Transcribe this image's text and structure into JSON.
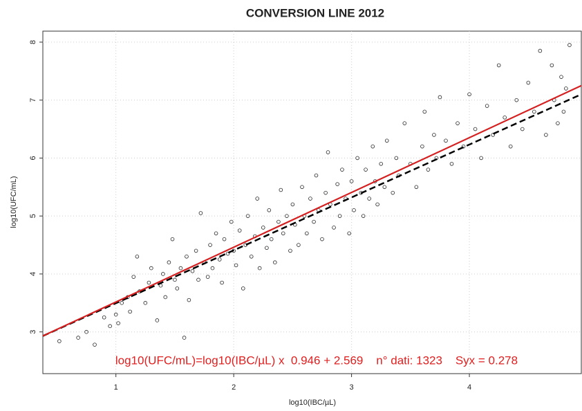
{
  "chart_data": {
    "type": "scatter",
    "title": "CONVERSION LINE 2012",
    "x_label": "log10(IBC/µL)",
    "y_label": "log10(UFC/mL)",
    "annotation": "log10(UFC/mL)=log10(IBC/µL) x  0.946 + 2.569    n° dati: 1323    Syx = 0.278",
    "annotation_color": "#e02020",
    "xlim": [
      0.38,
      4.95
    ],
    "ylim": [
      2.28,
      8.19
    ],
    "xticks": [
      1,
      2,
      3,
      4
    ],
    "yticks": [
      3,
      4,
      5,
      6,
      7,
      8
    ],
    "grid": true,
    "point_color": "#222222",
    "x": [
      0.52,
      0.68,
      0.75,
      0.82,
      0.9,
      0.95,
      1.0,
      1.02,
      1.05,
      1.1,
      1.12,
      1.15,
      1.18,
      1.2,
      1.25,
      1.28,
      1.3,
      1.35,
      1.38,
      1.4,
      1.42,
      1.45,
      1.48,
      1.5,
      1.52,
      1.55,
      1.58,
      1.6,
      1.62,
      1.65,
      1.68,
      1.7,
      1.72,
      1.75,
      1.78,
      1.8,
      1.82,
      1.85,
      1.88,
      1.9,
      1.92,
      1.95,
      1.98,
      2.0,
      2.02,
      2.05,
      2.08,
      2.1,
      2.12,
      2.15,
      2.18,
      2.2,
      2.22,
      2.25,
      2.28,
      2.3,
      2.32,
      2.35,
      2.38,
      2.4,
      2.42,
      2.45,
      2.48,
      2.5,
      2.52,
      2.55,
      2.58,
      2.6,
      2.62,
      2.65,
      2.68,
      2.7,
      2.72,
      2.75,
      2.78,
      2.8,
      2.82,
      2.85,
      2.88,
      2.9,
      2.92,
      2.95,
      2.98,
      3.0,
      3.02,
      3.05,
      3.08,
      3.1,
      3.12,
      3.15,
      3.18,
      3.2,
      3.22,
      3.25,
      3.28,
      3.3,
      3.35,
      3.38,
      3.4,
      3.45,
      3.5,
      3.55,
      3.6,
      3.62,
      3.65,
      3.7,
      3.72,
      3.75,
      3.8,
      3.85,
      3.9,
      3.95,
      4.0,
      4.05,
      4.1,
      4.15,
      4.2,
      4.25,
      4.3,
      4.35,
      4.4,
      4.45,
      4.5,
      4.55,
      4.6,
      4.65,
      4.7,
      4.72,
      4.75,
      4.78,
      4.8,
      4.85,
      4.82
    ],
    "y": [
      2.84,
      2.9,
      3.0,
      2.78,
      3.25,
      3.1,
      3.3,
      3.15,
      3.5,
      3.6,
      3.35,
      3.95,
      4.3,
      3.7,
      3.5,
      3.85,
      4.1,
      3.2,
      3.8,
      4.0,
      3.6,
      4.2,
      4.6,
      3.9,
      3.75,
      4.1,
      2.9,
      4.3,
      3.55,
      4.05,
      4.4,
      3.9,
      5.05,
      4.2,
      3.95,
      4.5,
      4.1,
      4.7,
      4.25,
      3.85,
      4.6,
      4.35,
      4.9,
      4.4,
      4.15,
      4.75,
      3.75,
      4.5,
      5.0,
      4.3,
      4.65,
      5.3,
      4.1,
      4.8,
      4.45,
      5.1,
      4.6,
      4.2,
      4.9,
      5.45,
      4.7,
      5.0,
      4.4,
      5.2,
      4.85,
      4.5,
      5.5,
      5.0,
      4.7,
      5.3,
      4.9,
      5.7,
      5.1,
      4.6,
      5.4,
      6.1,
      5.2,
      4.8,
      5.55,
      5.0,
      5.8,
      5.3,
      4.7,
      5.6,
      5.1,
      6.0,
      5.4,
      5.0,
      5.8,
      5.3,
      6.2,
      5.6,
      5.2,
      5.9,
      5.5,
      6.3,
      5.4,
      6.0,
      5.7,
      6.6,
      5.9,
      5.5,
      6.2,
      6.8,
      5.8,
      6.4,
      6.0,
      7.05,
      6.3,
      5.9,
      6.6,
      6.2,
      7.1,
      6.5,
      6.0,
      6.9,
      6.4,
      7.6,
      6.7,
      6.2,
      7.0,
      6.5,
      7.3,
      6.8,
      7.85,
      6.4,
      7.6,
      7.0,
      6.6,
      7.4,
      6.8,
      7.95,
      7.2
    ],
    "fit_lines": [
      {
        "color": "#000000",
        "dashed": true,
        "x": [
          0.38,
          4.95
        ],
        "y": [
          2.93,
          7.1
        ]
      },
      {
        "color": "#d42020",
        "dashed": false,
        "x": [
          0.38,
          4.95
        ],
        "y": [
          2.93,
          7.25
        ]
      }
    ]
  }
}
